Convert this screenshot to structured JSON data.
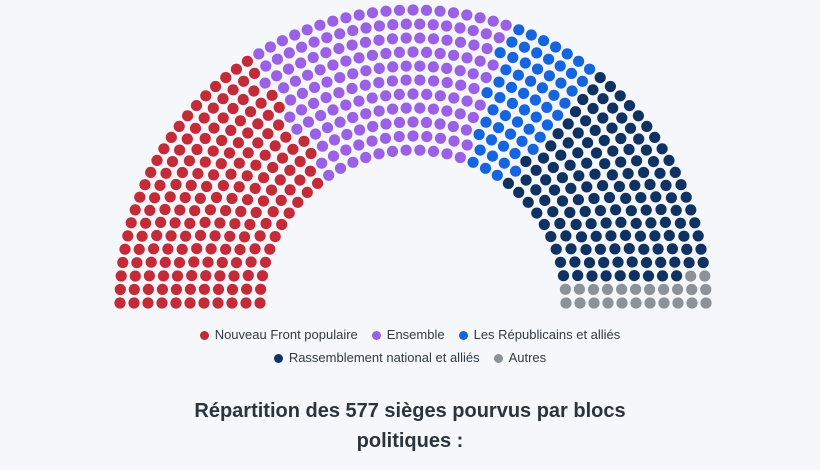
{
  "page": {
    "background_color": "#F5F7FA",
    "text_color": "#2B333C"
  },
  "chart_data": {
    "type": "parliament",
    "title": "Répartition des 577 sièges pourvus par blocs politiques :",
    "total_seats": 577,
    "rows": 11,
    "legend_position": "bottom",
    "series": [
      {
        "name": "Nouveau Front populaire",
        "seats": 182,
        "color": "#C32B38"
      },
      {
        "name": "Ensemble",
        "seats": 168,
        "color": "#9A60E6"
      },
      {
        "name": "Les Républicains et alliés",
        "seats": 60,
        "color": "#1565E0"
      },
      {
        "name": "Rassemblement national et alliés",
        "seats": 143,
        "color": "#0F3262"
      },
      {
        "name": "Autres",
        "seats": 24,
        "color": "#8C9297"
      }
    ]
  }
}
